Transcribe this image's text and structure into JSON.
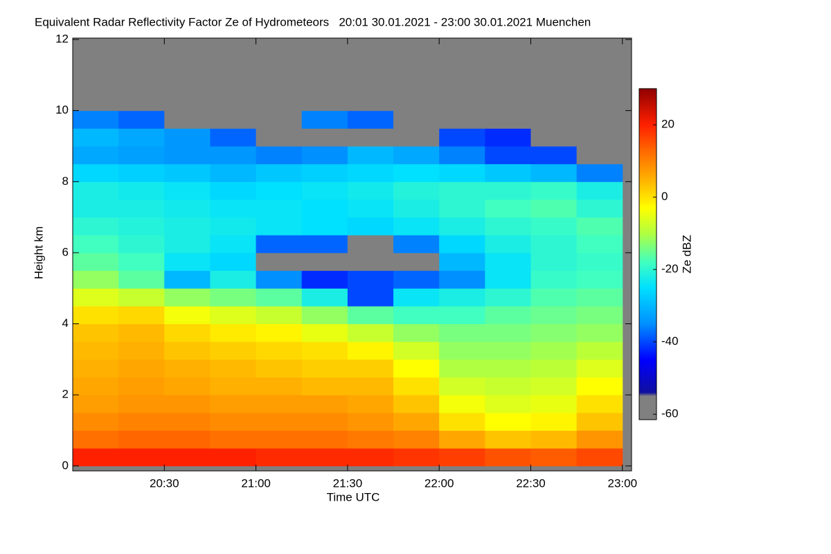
{
  "chart_data": {
    "type": "heatmap",
    "title": "Equivalent Radar Reflectivity Factor Ze of Hydrometeors   20:01 30.01.2021 - 23:00 30.01.2021 Muenchen",
    "xlabel": "Time UTC",
    "ylabel": "Height km",
    "colorbar_label": "Ze dBZ",
    "xlim": [
      "20:00",
      "23:03"
    ],
    "xticks": [
      "20:30",
      "21:00",
      "21:30",
      "22:00",
      "22:30",
      "23:00"
    ],
    "ylim": [
      -0.14,
      12.04
    ],
    "yticks": [
      0,
      2,
      4,
      6,
      8,
      10,
      12
    ],
    "clim": [
      -61.5,
      30
    ],
    "cticks": [
      -60,
      -40,
      -20,
      0,
      20
    ],
    "missing_color": "#808080",
    "colormap": [
      [
        -61.5,
        "#808080"
      ],
      [
        -55,
        "#808080"
      ],
      [
        -54,
        "#1010a0"
      ],
      [
        -45,
        "#0000ff"
      ],
      [
        -35,
        "#0090ff"
      ],
      [
        -25,
        "#00e0ff"
      ],
      [
        -18,
        "#40ffc0"
      ],
      [
        -10,
        "#b0ff40"
      ],
      [
        -3,
        "#ffff00"
      ],
      [
        5,
        "#ffb000"
      ],
      [
        12,
        "#ff7000"
      ],
      [
        20,
        "#ff2000"
      ],
      [
        30,
        "#900000"
      ]
    ],
    "xbins": [
      "20:00",
      "20:15",
      "20:30",
      "20:45",
      "21:00",
      "21:15",
      "21:30",
      "21:45",
      "22:00",
      "22:15",
      "22:30",
      "22:45",
      "23:00"
    ],
    "ybins": [
      0,
      0.5,
      1,
      1.5,
      2,
      2.5,
      3,
      3.5,
      4,
      4.5,
      5,
      5.5,
      6,
      6.5,
      7,
      7.5,
      8,
      8.5,
      9,
      9.5,
      10,
      10.5,
      11,
      11.5,
      12
    ],
    "z": [
      [
        20,
        20,
        20,
        20,
        19,
        19,
        19,
        18,
        17,
        15,
        14,
        16
      ],
      [
        12,
        13,
        13,
        12,
        12,
        12,
        11,
        10,
        6,
        3,
        4,
        8
      ],
      [
        9,
        10,
        10,
        9,
        9,
        9,
        8,
        6,
        0,
        -3,
        -2,
        3
      ],
      [
        7,
        8,
        8,
        7,
        7,
        7,
        6,
        3,
        -4,
        -6,
        -5,
        0
      ],
      [
        6,
        7,
        6,
        5,
        5,
        4,
        4,
        0,
        -7,
        -8,
        -7,
        -3
      ],
      [
        5,
        6,
        5,
        4,
        3,
        2,
        2,
        -3,
        -10,
        -10,
        -9,
        -6
      ],
      [
        4,
        5,
        3,
        2,
        1,
        0,
        -2,
        -7,
        -12,
        -12,
        -11,
        -9
      ],
      [
        3,
        4,
        1,
        -1,
        -2,
        -5,
        -8,
        -12,
        -14,
        -14,
        -13,
        -12
      ],
      [
        0,
        1,
        -4,
        -6,
        -8,
        -12,
        -16,
        -18,
        -18,
        -16,
        -15,
        -14
      ],
      [
        -6,
        -8,
        -12,
        -14,
        -16,
        -22,
        -40,
        -24,
        -22,
        -20,
        -17,
        -16
      ],
      [
        -12,
        -16,
        -30,
        -22,
        -35,
        -42,
        -40,
        -38,
        -35,
        -24,
        -19,
        -18
      ],
      [
        -16,
        -18,
        -24,
        -26,
        null,
        null,
        null,
        null,
        -30,
        -24,
        -20,
        -19
      ],
      [
        -18,
        -20,
        -22,
        -24,
        -38,
        -38,
        null,
        -36,
        -26,
        -22,
        -20,
        -18
      ],
      [
        -20,
        -21,
        -22,
        -23,
        -24,
        -25,
        -26,
        -24,
        -22,
        -20,
        -19,
        -17
      ],
      [
        -22,
        -22,
        -23,
        -24,
        -24,
        -25,
        -24,
        -22,
        -20,
        -18,
        -17,
        -20
      ],
      [
        -22,
        -23,
        -24,
        -26,
        -25,
        -24,
        -23,
        -21,
        -20,
        -20,
        -19,
        -22
      ],
      [
        -26,
        -27,
        -28,
        -30,
        -28,
        -27,
        -26,
        -25,
        -26,
        -28,
        -30,
        -36
      ],
      [
        -32,
        -33,
        -34,
        -34,
        -36,
        -35,
        -30,
        -32,
        -36,
        -40,
        -40,
        null
      ],
      [
        -30,
        -32,
        -34,
        -38,
        null,
        null,
        null,
        null,
        -40,
        -42,
        null,
        null
      ],
      [
        -36,
        -38,
        null,
        null,
        null,
        -36,
        -38,
        null,
        null,
        null,
        null,
        null
      ],
      [
        null,
        null,
        null,
        null,
        null,
        null,
        null,
        null,
        null,
        null,
        null,
        null
      ],
      [
        null,
        null,
        null,
        null,
        null,
        null,
        null,
        null,
        null,
        null,
        null,
        null
      ],
      [
        null,
        null,
        null,
        null,
        null,
        null,
        null,
        null,
        null,
        null,
        null,
        null
      ],
      [
        null,
        null,
        null,
        null,
        null,
        null,
        null,
        null,
        null,
        null,
        null,
        null
      ]
    ]
  }
}
